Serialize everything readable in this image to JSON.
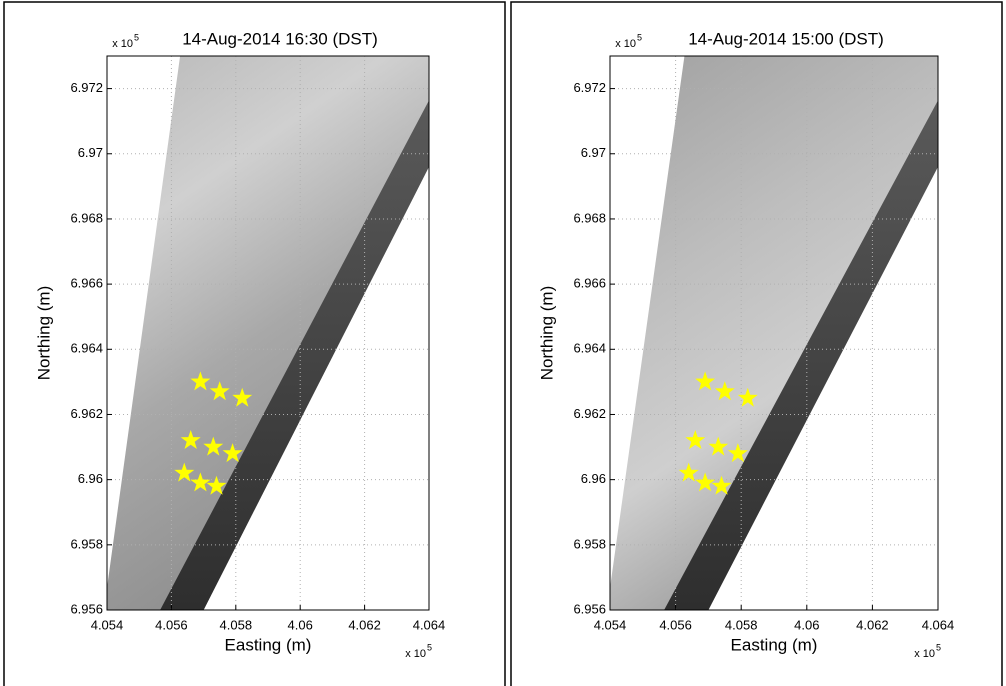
{
  "chart_data": [
    {
      "type": "scatter",
      "title": "14-Aug-2014 16:30 (DST)",
      "x_label": "Easting (m)",
      "y_label": "Northing (m)",
      "x_multiplier": {
        "base": "x 10",
        "power": "5"
      },
      "y_multiplier": {
        "base": "x 10",
        "power": "5"
      },
      "x": [
        4.0569,
        4.0575,
        4.0582,
        4.0566,
        4.0573,
        4.0579,
        4.0564,
        4.0569,
        4.0574
      ],
      "values": [
        6.963,
        6.9627,
        6.9625,
        6.9612,
        6.961,
        6.9608,
        6.9602,
        6.9599,
        6.9598
      ],
      "color": "#ffff00",
      "marker": "star",
      "grid": true,
      "xlim": [
        4.054,
        4.064
      ],
      "xticks": [
        4.054,
        4.056,
        4.058,
        4.06,
        4.062,
        4.064
      ],
      "ylim": [
        6.956,
        6.973
      ],
      "yticks": [
        6.956,
        6.958,
        6.96,
        6.962,
        6.964,
        6.966,
        6.968,
        6.97,
        6.972
      ]
    },
    {
      "type": "scatter",
      "title": "14-Aug-2014 15:00 (DST)",
      "x_label": "Easting (m)",
      "y_label": "Northing (m)",
      "x_multiplier": {
        "base": "x 10",
        "power": "5"
      },
      "y_multiplier": {
        "base": "x 10",
        "power": "5"
      },
      "x": [
        4.0569,
        4.0575,
        4.0582,
        4.0566,
        4.0573,
        4.0579,
        4.0564,
        4.0569,
        4.0574
      ],
      "values": [
        6.963,
        6.9627,
        6.9625,
        6.9612,
        6.961,
        6.9608,
        6.9602,
        6.9599,
        6.9598
      ],
      "color": "#ffff00",
      "marker": "star",
      "grid": true,
      "xlim": [
        4.054,
        4.064
      ],
      "xticks": [
        4.054,
        4.056,
        4.058,
        4.06,
        4.062,
        4.064
      ],
      "ylim": [
        6.956,
        6.973
      ],
      "yticks": [
        6.956,
        6.958,
        6.96,
        6.962,
        6.964,
        6.966,
        6.968,
        6.97,
        6.972
      ]
    }
  ]
}
